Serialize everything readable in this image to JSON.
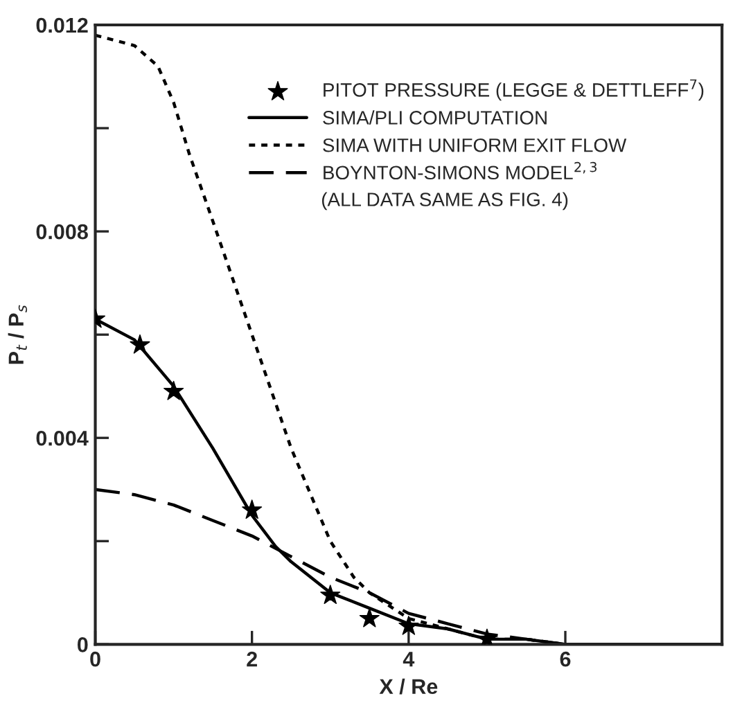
{
  "chart_data": {
    "type": "line",
    "xlabel": "X / Re",
    "ylabel": "P$_{t}$ / P$_{s}$",
    "xlim": [
      0,
      8
    ],
    "xticks": [
      0,
      2,
      4,
      6
    ],
    "ylim": [
      0,
      0.012
    ],
    "yticks": [
      0,
      {
        "value": 0.002,
        "label": null
      },
      0.004,
      {
        "value": 0.006,
        "label": null
      },
      0.008,
      {
        "value": 0.01,
        "label": null
      },
      0.012
    ],
    "grid": false,
    "legend": "top right",
    "series": [
      {
        "name": "PITOT PRESSURE (LEGGE & DETTLEFF$^{7}$)",
        "type": "scatter",
        "marker": "star",
        "color": "#000000",
        "x": [
          0,
          0.57,
          1,
          2,
          3,
          3.5,
          4,
          5
        ],
        "values": [
          0.0063,
          0.0058,
          0.0049,
          0.0026,
          0.00095,
          0.0005,
          0.00035,
          0.0001
        ]
      },
      {
        "name": "SIMA/PLI COMPUTATION",
        "line_style": "solid",
        "color": "#000000",
        "x": [
          0,
          0.5,
          1,
          1.5,
          2,
          2.3,
          2.5,
          3,
          3.5,
          4,
          4.5,
          5,
          5.5,
          6,
          7,
          8
        ],
        "values": [
          0.0063,
          0.0059,
          0.005,
          0.0038,
          0.0025,
          0.0019,
          0.0016,
          0.001,
          0.0007,
          0.0004,
          0.0003,
          0.0001,
          0.0001,
          0,
          0,
          0
        ]
      },
      {
        "name": "SIMA WITH UNIFORM EXIT FLOW",
        "line_style": "dotted",
        "color": "#000000",
        "x": [
          0,
          0.5,
          0.8,
          1,
          1.2,
          1.5,
          2,
          2.5,
          3,
          3.3,
          3.5,
          4,
          4.5,
          5,
          5.5,
          6,
          7
        ],
        "values": [
          0.0118,
          0.0116,
          0.0112,
          0.0105,
          0.0095,
          0.0082,
          0.006,
          0.0038,
          0.002,
          0.0013,
          0.001,
          0.0005,
          0.0003,
          0.0001,
          0.0001,
          0,
          0
        ]
      },
      {
        "name": "BOYNTON-SIMONS MODEL$^{2,3}$",
        "line_style": "dashed",
        "color": "#000000",
        "x": [
          0,
          0.5,
          1,
          1.5,
          2,
          2.5,
          3,
          3.5,
          4,
          4.5,
          5,
          5.5,
          6,
          7,
          8
        ],
        "values": [
          0.003,
          0.0029,
          0.0027,
          0.0024,
          0.0021,
          0.0017,
          0.0013,
          0.001,
          0.0006,
          0.0004,
          0.0002,
          0.0001,
          0,
          0,
          0
        ]
      }
    ],
    "annotations": [
      "(ALL DATA SAME AS FIG. 4)"
    ]
  }
}
